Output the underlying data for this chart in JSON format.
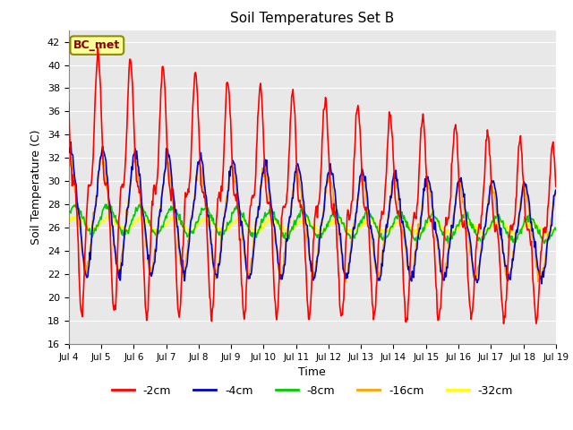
{
  "title": "Soil Temperatures Set B",
  "xlabel": "Time",
  "ylabel": "Soil Temperature (C)",
  "ylim": [
    16,
    43
  ],
  "yticks": [
    16,
    18,
    20,
    22,
    24,
    26,
    28,
    30,
    32,
    34,
    36,
    38,
    40,
    42
  ],
  "annotation": "BC_met",
  "annotation_color": "#8B0000",
  "annotation_bg": "#FFFF99",
  "annotation_border": "#8B8B00",
  "fig_bg": "#FFFFFF",
  "plot_bg": "#E8E8E8",
  "grid_color": "#FFFFFF",
  "line_colors": {
    "-2cm": "#FF0000",
    "-4cm": "#0000CC",
    "-8cm": "#00CC00",
    "-16cm": "#FFA500",
    "-32cm": "#FFFF00"
  },
  "line_width": 1.2,
  "legend_labels": [
    "-2cm",
    "-4cm",
    "-8cm",
    "-16cm",
    "-32cm"
  ],
  "xtick_labels": [
    "Jul 4",
    "Jul 5",
    "Jul 6",
    "Jul 7",
    "Jul 8",
    "Jul 9",
    "Jul 10",
    "Jul 11",
    "Jul 12",
    "Jul 13",
    "Jul 14",
    "Jul 15",
    "Jul 16",
    "Jul 17",
    "Jul 18",
    "Jul 19"
  ],
  "num_days": 15,
  "points_per_day": 48
}
